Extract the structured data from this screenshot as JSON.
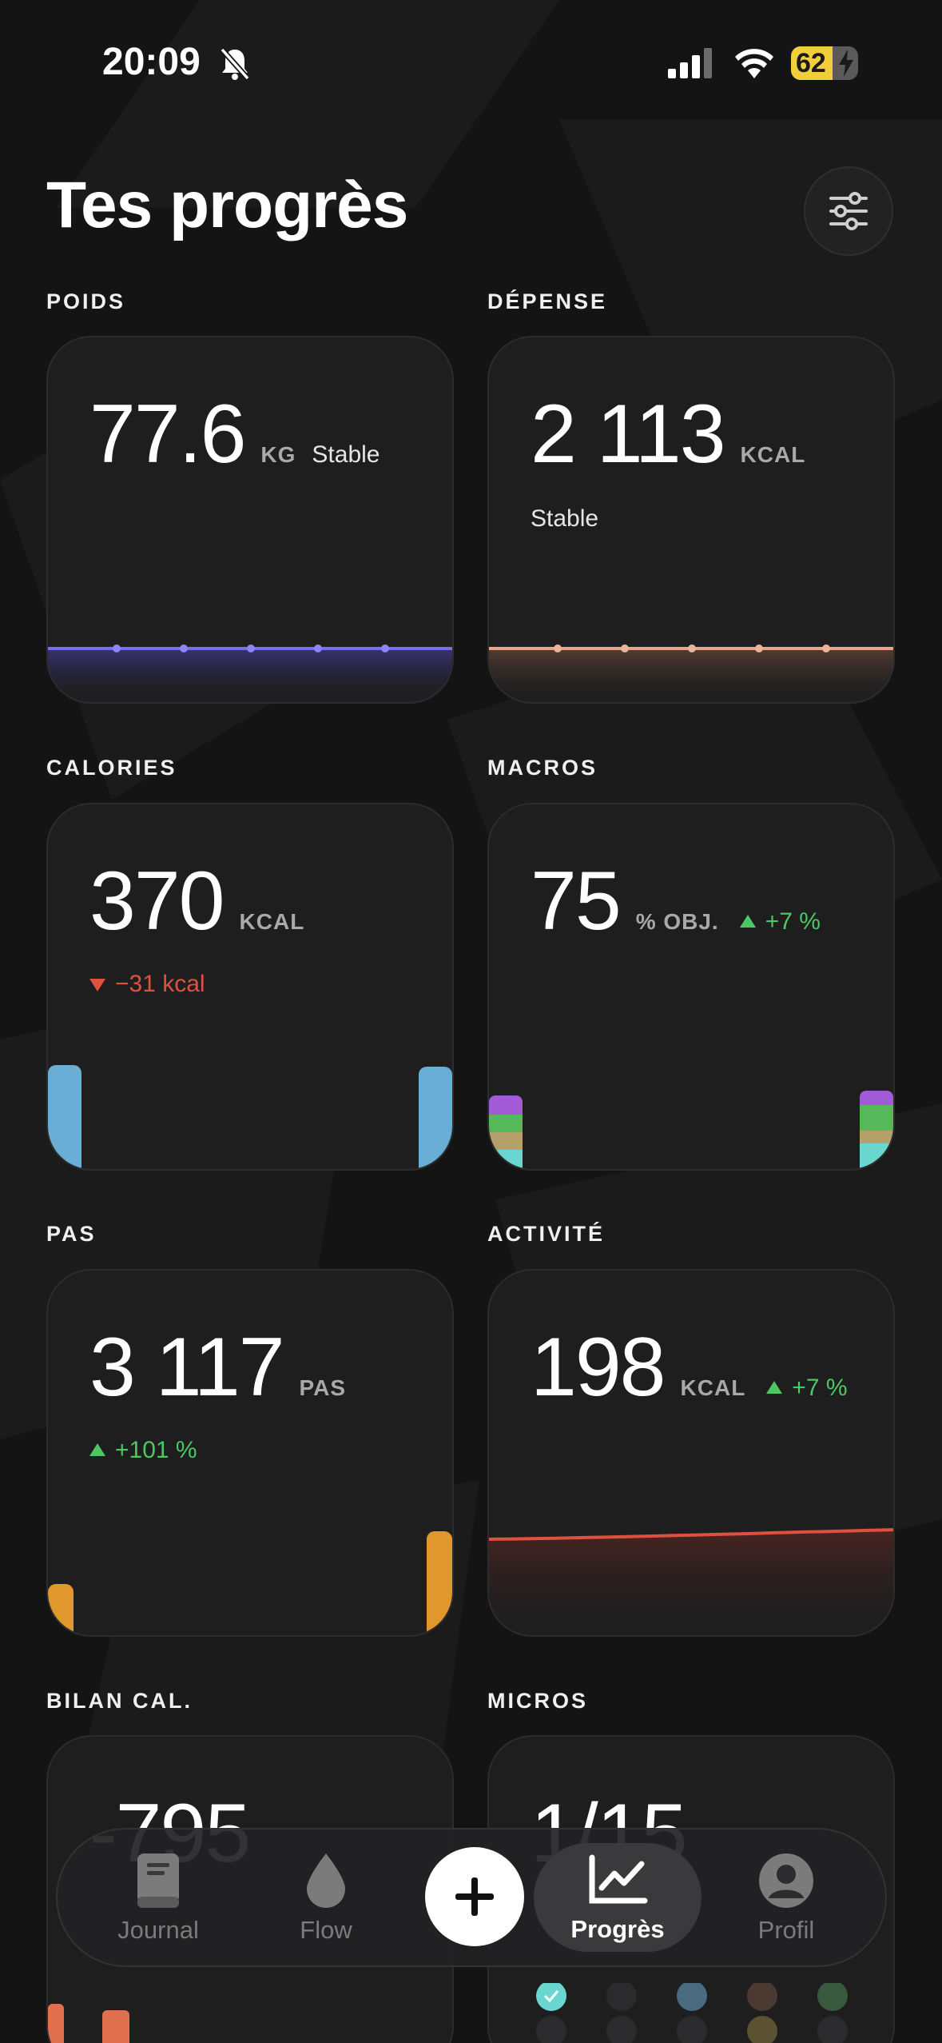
{
  "status_bar": {
    "time": "20:09",
    "battery": "62"
  },
  "header": {
    "title": "Tes progrès"
  },
  "cards": {
    "poids": {
      "label": "POIDS",
      "value": "77.6",
      "unit": "KG",
      "status": "Stable"
    },
    "depense": {
      "label": "DÉPENSE",
      "value": "2 113",
      "unit": "KCAL",
      "status": "Stable"
    },
    "calories": {
      "label": "CALORIES",
      "value": "370",
      "unit": "KCAL",
      "delta": "−31 kcal"
    },
    "macros": {
      "label": "MACROS",
      "value": "75",
      "unit": "% OBJ.",
      "delta": "+7 %"
    },
    "pas": {
      "label": "PAS",
      "value": "3 117",
      "unit": "PAS",
      "delta": "+101 %"
    },
    "activite": {
      "label": "ACTIVITÉ",
      "value": "198",
      "unit": "KCAL",
      "delta": "+7 %"
    },
    "bilan": {
      "label": "BILAN CAL.",
      "value": "-795"
    },
    "micros": {
      "label": "MICROS",
      "value": "1/15"
    }
  },
  "tabbar": {
    "items": [
      {
        "label": "Journal",
        "icon": "book-icon"
      },
      {
        "label": "Flow",
        "icon": "drop-icon"
      },
      {
        "label": "Progrès",
        "icon": "chart-icon"
      },
      {
        "label": "Profil",
        "icon": "person-icon"
      }
    ],
    "add_icon": "plus-icon"
  },
  "colors": {
    "weight_line": "#7c6cf0",
    "expense_line": "#e8a58a",
    "calories_bar": "#6aaed6",
    "steps_bar": "#e0982e",
    "activity_line": "#e0503f",
    "positive": "#4cc764",
    "negative": "#e0503f"
  }
}
